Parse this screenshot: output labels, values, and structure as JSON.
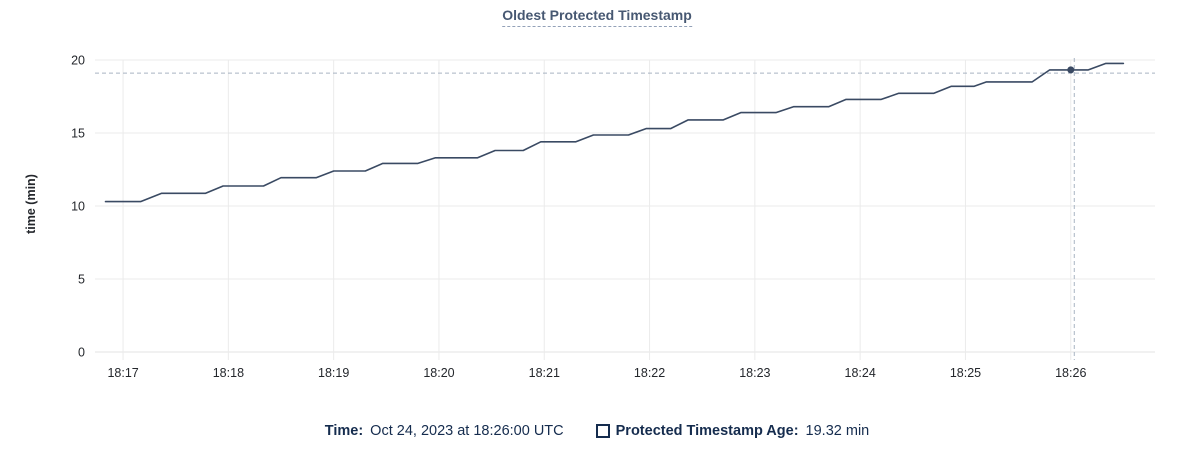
{
  "title": "Oldest Protected Timestamp",
  "axis": {
    "y_label": "time (min)"
  },
  "legend": {
    "time_label": "Time:",
    "time_value": "Oct 24, 2023 at 18:26:00 UTC",
    "series_label": "Protected Timestamp Age:",
    "series_value": "19.32 min"
  },
  "colors": {
    "line": "#3a4a63",
    "grid": "#ebebeb",
    "axis_line": "#e3e3e3",
    "cursor": "#a9b4c2",
    "title": "#475872",
    "legend_text": "#152c4e",
    "tick_text": "#24272c",
    "title_underline": "#93a1b8"
  },
  "chart_data": {
    "type": "line",
    "title": "Oldest Protected Timestamp",
    "xlabel": "",
    "ylabel": "time (min)",
    "ylim": [
      0,
      20
    ],
    "y_ticks": [
      0,
      5,
      10,
      15,
      20
    ],
    "x_range": [
      "18:16:44",
      "18:26:48"
    ],
    "x_ticks": [
      "18:17",
      "18:18",
      "18:19",
      "18:20",
      "18:21",
      "18:22",
      "18:23",
      "18:24",
      "18:25",
      "18:26"
    ],
    "grid": true,
    "legend_position": "bottom",
    "series": [
      {
        "name": "Protected Timestamp Age",
        "unit": "min",
        "points": [
          [
            "18:16:50",
            10.3
          ],
          [
            "18:17:10",
            10.3
          ],
          [
            "18:17:22",
            10.87
          ],
          [
            "18:17:47",
            10.87
          ],
          [
            "18:17:57",
            11.37
          ],
          [
            "18:18:20",
            11.37
          ],
          [
            "18:18:30",
            11.94
          ],
          [
            "18:18:50",
            11.94
          ],
          [
            "18:19:00",
            12.4
          ],
          [
            "18:19:18",
            12.4
          ],
          [
            "18:19:28",
            12.92
          ],
          [
            "18:19:48",
            12.92
          ],
          [
            "18:19:58",
            13.3
          ],
          [
            "18:20:22",
            13.3
          ],
          [
            "18:20:32",
            13.8
          ],
          [
            "18:20:48",
            13.8
          ],
          [
            "18:20:58",
            14.4
          ],
          [
            "18:21:18",
            14.4
          ],
          [
            "18:21:28",
            14.86
          ],
          [
            "18:21:48",
            14.86
          ],
          [
            "18:21:58",
            15.3
          ],
          [
            "18:22:12",
            15.3
          ],
          [
            "18:22:22",
            15.9
          ],
          [
            "18:22:42",
            15.9
          ],
          [
            "18:22:52",
            16.4
          ],
          [
            "18:23:12",
            16.4
          ],
          [
            "18:23:22",
            16.8
          ],
          [
            "18:23:42",
            16.8
          ],
          [
            "18:23:52",
            17.3
          ],
          [
            "18:24:12",
            17.3
          ],
          [
            "18:24:22",
            17.72
          ],
          [
            "18:24:42",
            17.72
          ],
          [
            "18:24:52",
            18.2
          ],
          [
            "18:25:05",
            18.2
          ],
          [
            "18:25:12",
            18.5
          ],
          [
            "18:25:38",
            18.5
          ],
          [
            "18:25:48",
            19.32
          ],
          [
            "18:26:10",
            19.32
          ],
          [
            "18:26:20",
            19.77
          ],
          [
            "18:26:30",
            19.77
          ]
        ]
      }
    ],
    "cursor": {
      "x": "18:26:02",
      "y_value": 19.1
    },
    "highlight_point": {
      "x": "18:26:00",
      "value": 19.32
    }
  }
}
